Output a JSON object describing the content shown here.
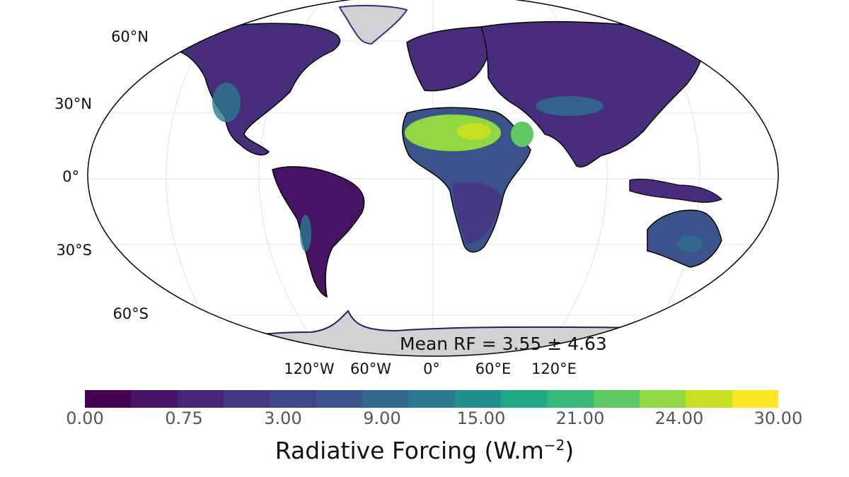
{
  "map": {
    "latitude_labels": [
      "60°N",
      "30°N",
      "0°",
      "30°S",
      "60°S"
    ],
    "longitude_labels": [
      "120°W",
      "60°W",
      "0°",
      "60°E",
      "120°E"
    ],
    "annotation": "Mean RF = 3.55 ± 4.63",
    "colors": {
      "ocean": "#ffffff",
      "gridline": "#e3e3e3",
      "coastline": "#000000",
      "ice": "#d2d2d4",
      "land_low": "#440154",
      "land_mid": "#3b528b",
      "land_high": "#5ec962",
      "land_peak": "#c6e021"
    }
  },
  "colorbar": {
    "title": "Radiative Forcing (W.m",
    "title_exponent": "−2",
    "title_suffix": ")",
    "tick_labels": [
      "0.00",
      "0.75",
      "3.00",
      "9.00",
      "15.00",
      "21.00",
      "24.00",
      "30.00"
    ],
    "tick_values": [
      0,
      0.75,
      3,
      9,
      15,
      21,
      24,
      30
    ],
    "colors": [
      "#440154",
      "#471365",
      "#482475",
      "#443983",
      "#3f4788",
      "#3b528b",
      "#31688e",
      "#2a788e",
      "#21908d",
      "#22a884",
      "#35b779",
      "#5ec962",
      "#90d743",
      "#c6e021",
      "#fde725"
    ]
  }
}
